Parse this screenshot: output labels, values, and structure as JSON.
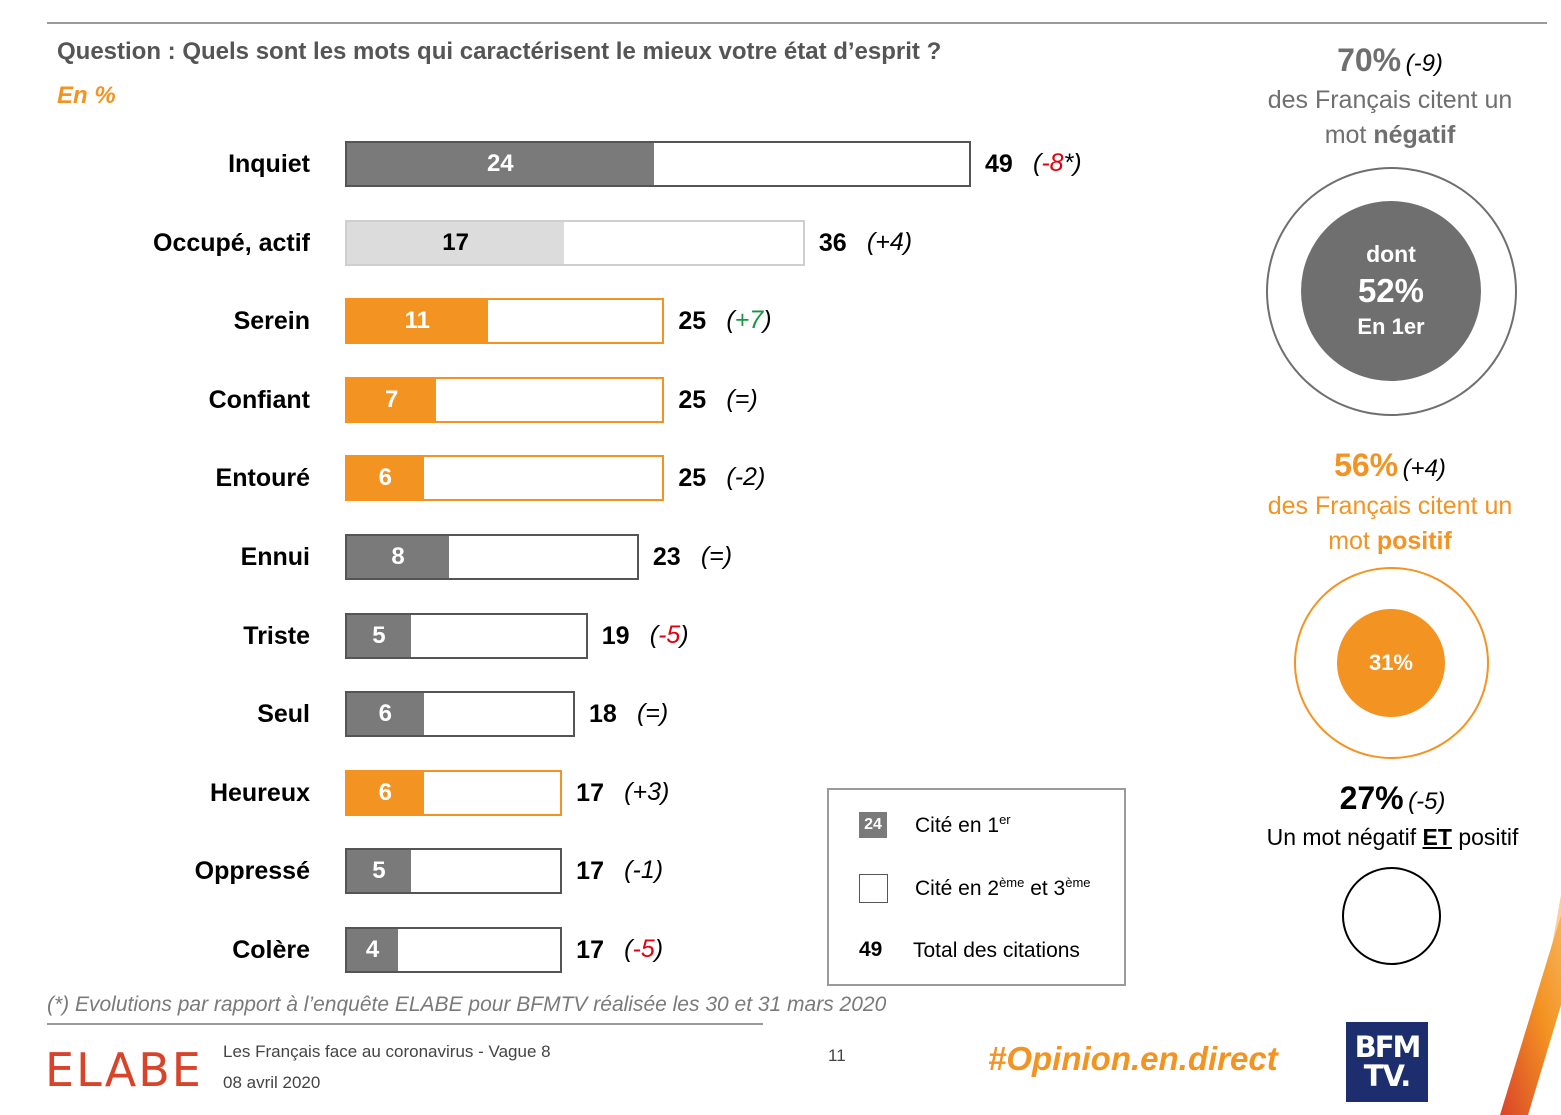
{
  "header": {
    "question": "Question : Quels sont les mots qui caractérisent le mieux votre état d’esprit ?",
    "unit": "En  %"
  },
  "chart_data": {
    "type": "bar",
    "orientation": "horizontal",
    "stacked_overlay": true,
    "categories": [
      "Inquiet",
      "Occupé, actif",
      "Serein",
      "Confiant",
      "Entouré",
      "Ennui",
      "Triste",
      "Seul",
      "Heureux",
      "Oppressé",
      "Colère"
    ],
    "series": [
      {
        "name": "Cité en 1er",
        "values": [
          24,
          17,
          11,
          7,
          6,
          8,
          5,
          6,
          6,
          5,
          4
        ]
      },
      {
        "name": "Total des citations",
        "values": [
          49,
          36,
          25,
          25,
          25,
          23,
          19,
          18,
          17,
          17,
          17
        ]
      }
    ],
    "evolutions": [
      "-8*",
      "+4",
      "+7",
      "=",
      "-2",
      "=",
      "-5",
      "=",
      "+3",
      "-1",
      "-5"
    ],
    "evolution_colors": [
      "#e3000f",
      "#000000",
      "#1a9641",
      "#000000",
      "#000000",
      "#000000",
      "#e3000f",
      "#000000",
      "#000000",
      "#000000",
      "#e3000f"
    ],
    "bar_colors": [
      "#7a7a7a",
      "#dcdcdc",
      "#f39322",
      "#f39322",
      "#f39322",
      "#7a7a7a",
      "#7a7a7a",
      "#7a7a7a",
      "#f39322",
      "#7a7a7a",
      "#7a7a7a"
    ],
    "border_colors": [
      "#555555",
      "#cfcfcf",
      "#f39322",
      "#f39322",
      "#f39322",
      "#555555",
      "#555555",
      "#555555",
      "#f39322",
      "#555555",
      "#555555"
    ],
    "label_colors": [
      "#ffffff",
      "#000000",
      "#ffffff",
      "#ffffff",
      "#ffffff",
      "#ffffff",
      "#ffffff",
      "#ffffff",
      "#ffffff",
      "#ffffff",
      "#ffffff"
    ],
    "xlim": [
      0,
      49
    ]
  },
  "legend": {
    "swatch_value": "24",
    "first_label": "Cité en 1",
    "first_sup": "er",
    "second_label_a": "Cité en 2",
    "second_sup_a": "ème",
    "second_label_b": " et 3",
    "second_sup_b": "ème",
    "total_value": "49",
    "total_label": "Total des citations"
  },
  "footnote": "(*) Evolutions par rapport à l’enquête ELABE pour BFMTV réalisée les 30 et 31 mars 2020",
  "side_panel": {
    "negative": {
      "pct": "70%",
      "evo": "(-9)",
      "line1": "des Français citent un",
      "line2_a": "mot ",
      "line2_b": "négatif",
      "inner_a": "dont",
      "inner_b": "52%",
      "inner_c": "En 1er",
      "first_share": 0.52
    },
    "positive": {
      "pct": "56%",
      "evo": "(+4)",
      "line1": "des Français citent un",
      "line2_a": "mot ",
      "line2_b": "positif",
      "inner": "31%",
      "first_share": 0.31
    },
    "both": {
      "pct": "27%",
      "evo": "(-5)",
      "line_a": "Un mot négatif ",
      "line_b": "ET",
      "line_c": " positif"
    }
  },
  "colors": {
    "orange": "#f39322",
    "grey": "#7a7a7a",
    "dark_grey": "#6f6f6f",
    "red": "#e3000f",
    "green": "#1a9641"
  },
  "footer": {
    "logo": "ELABE",
    "line1": "Les Français face au coronavirus - Vague 8",
    "line2": "08 avril 2020",
    "page": "11",
    "hashtag": "#Opinion.en.direct",
    "bfm_top": "BFM",
    "bfm_bottom": "TV."
  }
}
